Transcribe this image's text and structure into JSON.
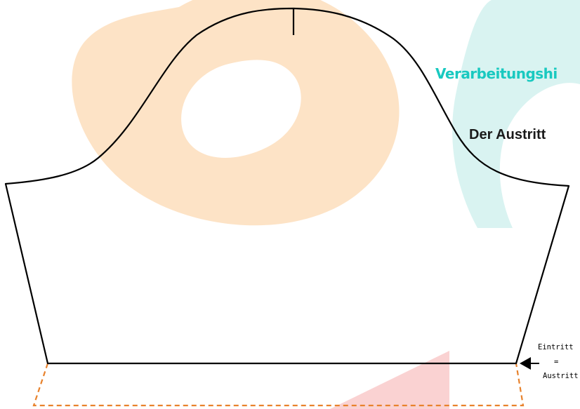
{
  "colors": {
    "background": "#ffffff",
    "watermark_orange": "#fde3c6",
    "watermark_cyan": "#d9f3f1",
    "watermark_red": "#fad2d2",
    "heading_cyan": "#19c9c0",
    "heading_dark": "#1a1a1a",
    "outline": "#000000",
    "seam_allowance": "#e8822c"
  },
  "headings": {
    "title": "Verarbeitungshi",
    "subtitle": "Der Austritt"
  },
  "labels": {
    "entry": "Eintritt",
    "equals": "=",
    "exit": "Austritt"
  },
  "icons": {
    "marker": "arrow-left-icon"
  }
}
